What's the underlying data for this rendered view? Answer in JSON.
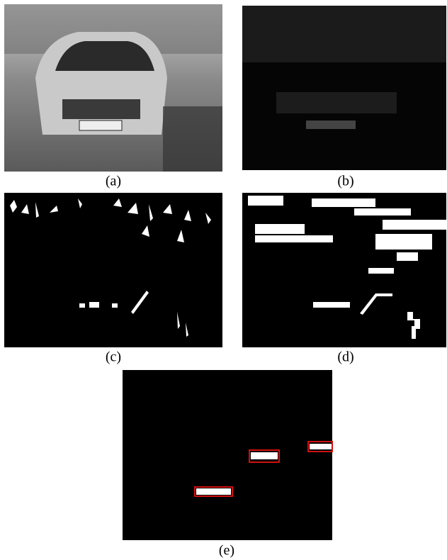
{
  "figure": {
    "panels": [
      {
        "caption": "(a)"
      },
      {
        "caption": "(b)"
      },
      {
        "caption": "(c)"
      },
      {
        "caption": "(d)"
      },
      {
        "caption": "(e)"
      }
    ]
  }
}
